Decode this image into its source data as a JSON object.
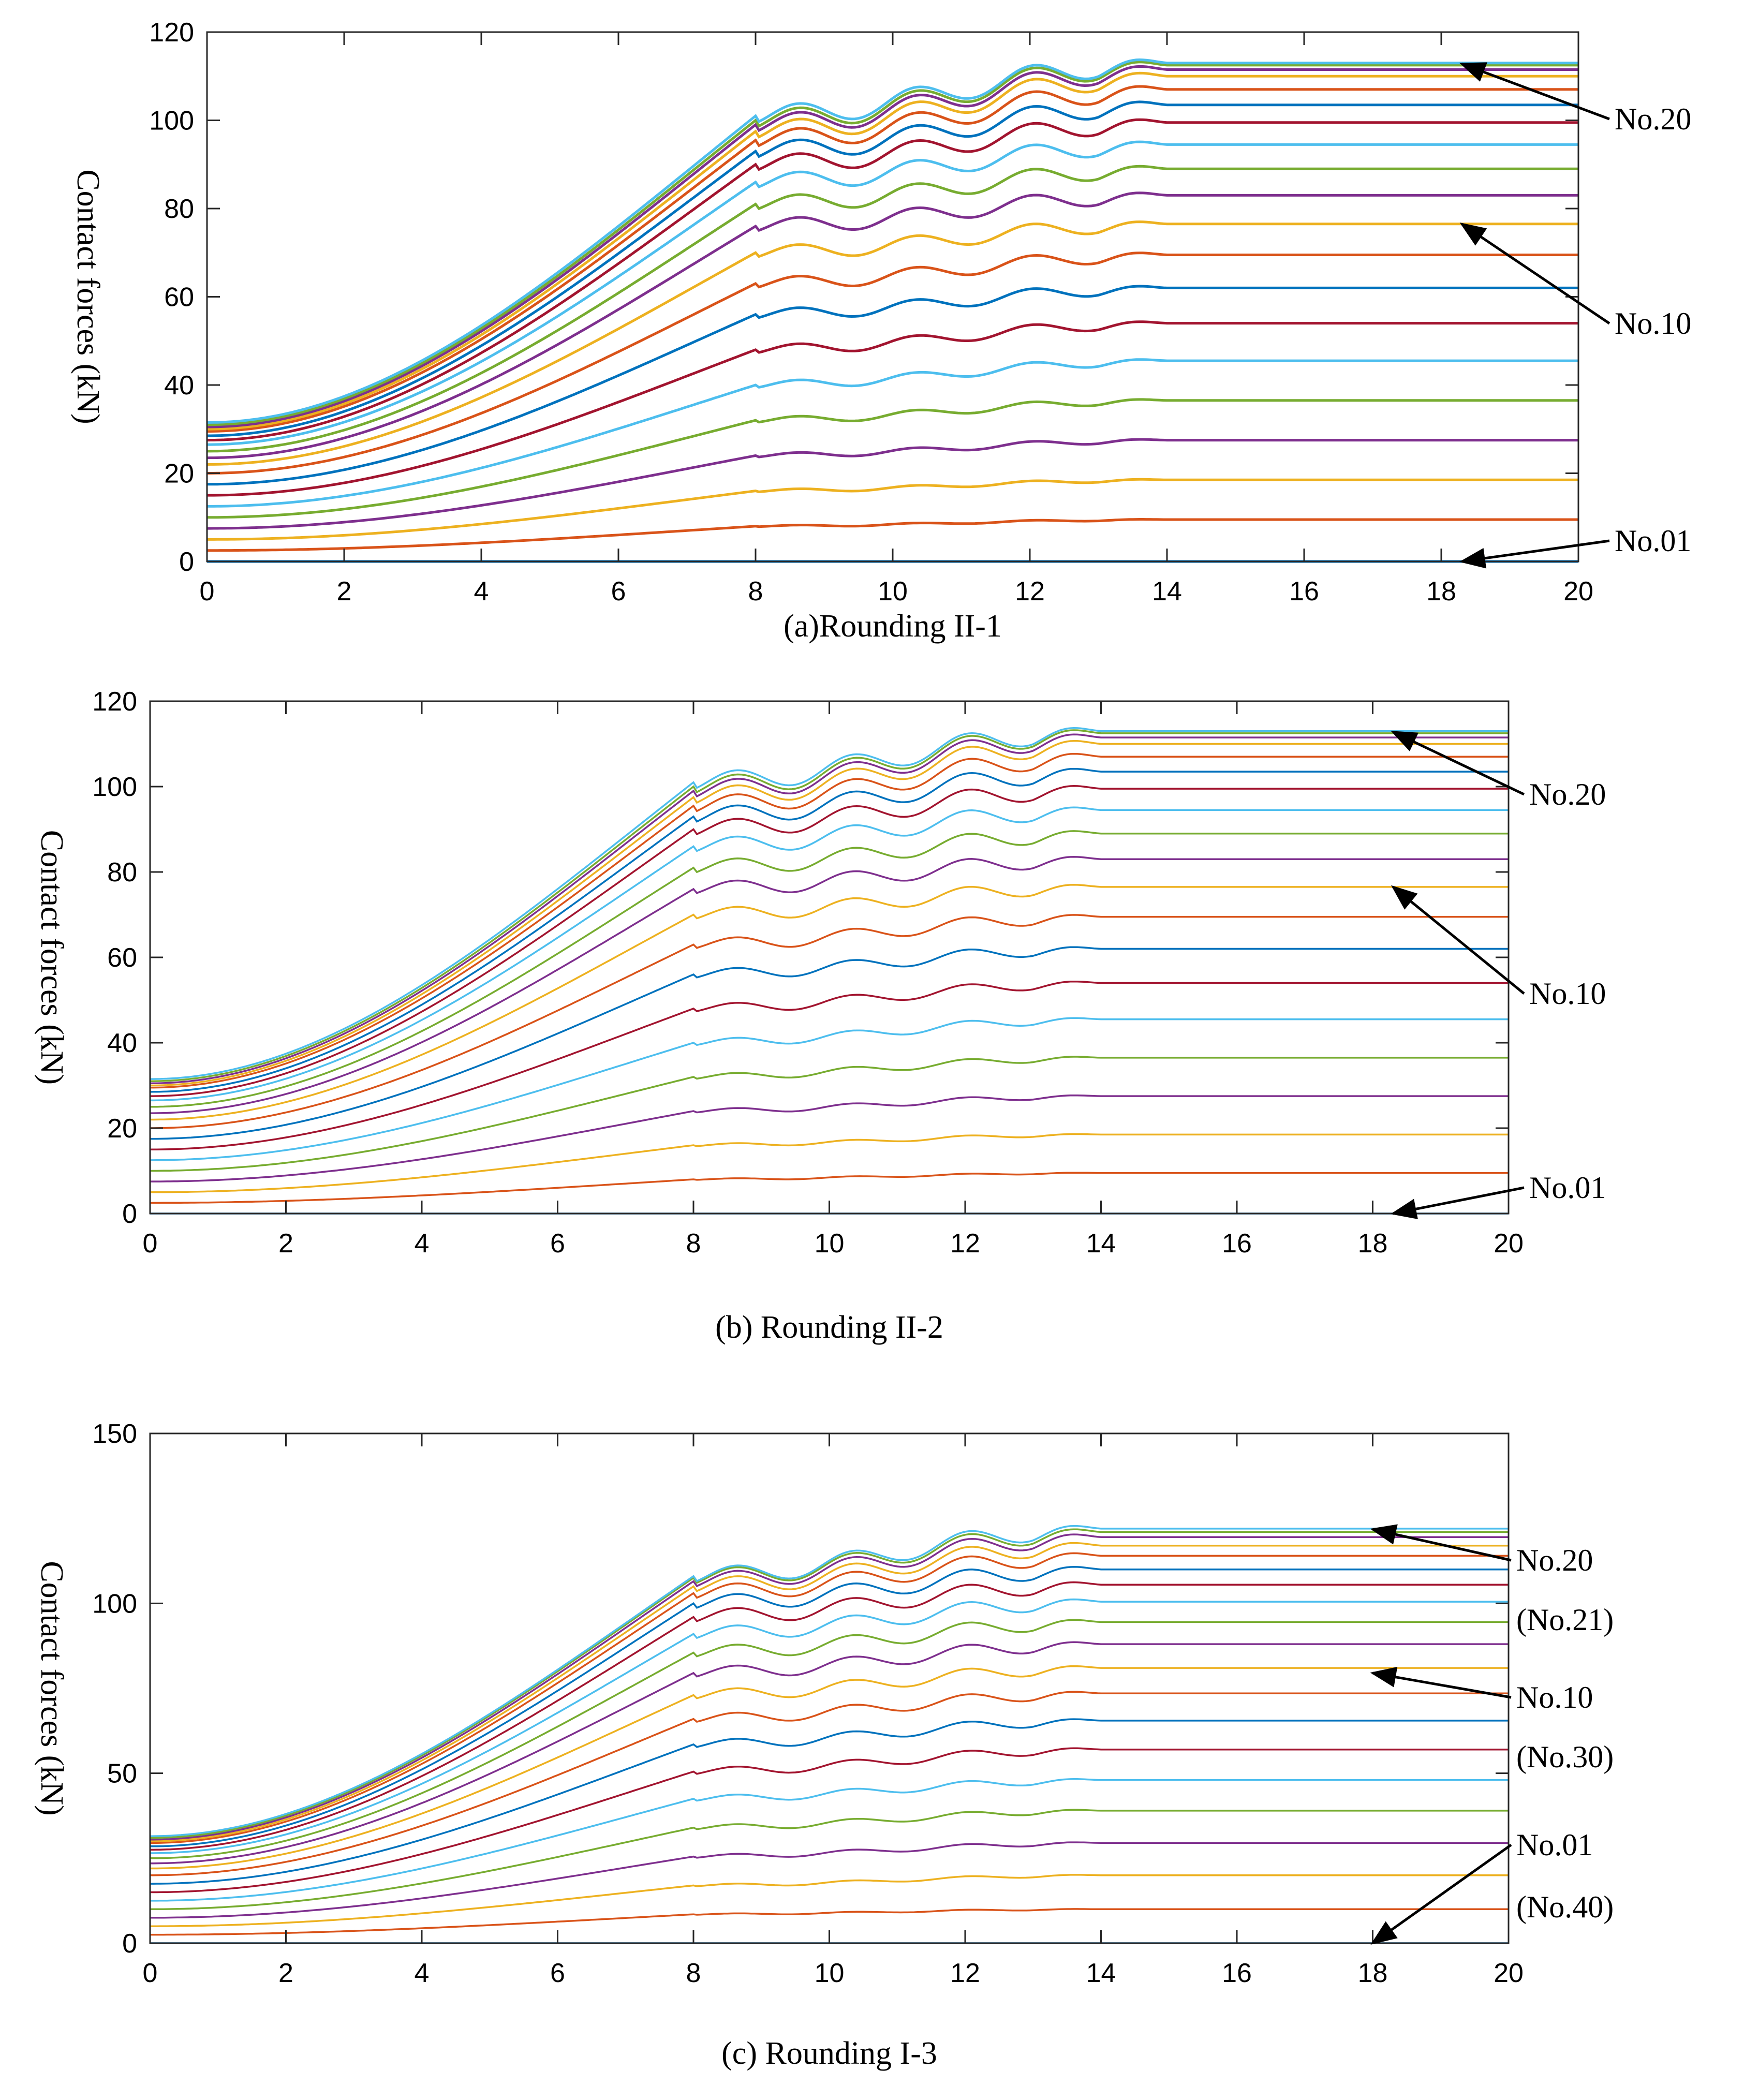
{
  "chart_data": [
    {
      "id": "a",
      "type": "line",
      "caption": "(a)Rounding II-1",
      "ylabel": "Contact forces (kN)",
      "xlim": [
        0,
        20
      ],
      "ylim": [
        0,
        120
      ],
      "xticks": [
        "0",
        "2",
        "4",
        "6",
        "8",
        "10",
        "12",
        "14",
        "16",
        "18",
        "20"
      ],
      "yticks": [
        "0",
        "20",
        "40",
        "60",
        "80",
        "100",
        "120"
      ],
      "series_count": 20,
      "series_final_values": [
        0,
        9.5,
        18.5,
        27.5,
        36.5,
        45.5,
        54,
        62,
        69.5,
        76.5,
        83,
        89,
        94.5,
        99.5,
        103.5,
        107,
        110,
        111.5,
        112.5,
        113
      ],
      "series_start_values": [
        0,
        2.5,
        5,
        7.5,
        10,
        12.5,
        15,
        17.5,
        20,
        22,
        23.5,
        25,
        26.5,
        27.5,
        28.5,
        29.5,
        30,
        30.5,
        31,
        31.5
      ],
      "series_plateau_values": [
        0,
        8,
        16,
        24,
        32,
        40,
        48,
        56,
        63,
        70,
        76,
        81,
        86,
        90,
        93,
        95.5,
        97.5,
        99,
        100,
        101
      ],
      "annotations": [
        {
          "label": "No.20",
          "target": [
            18.3,
            112.8
          ]
        },
        {
          "label": "No.10",
          "target": [
            18.3,
            76.5
          ]
        },
        {
          "label": "No.01",
          "target": [
            18.3,
            0
          ]
        }
      ]
    },
    {
      "id": "b",
      "type": "line",
      "caption": "(b) Rounding II-2",
      "ylabel": "Contact forces (kN)",
      "xlim": [
        0,
        20
      ],
      "ylim": [
        0,
        120
      ],
      "xticks": [
        "0",
        "2",
        "4",
        "6",
        "8",
        "10",
        "12",
        "14",
        "16",
        "18",
        "20"
      ],
      "yticks": [
        "0",
        "20",
        "40",
        "60",
        "80",
        "100",
        "120"
      ],
      "series_count": 20,
      "series_final_values": [
        0,
        9.5,
        18.5,
        27.5,
        36.5,
        45.5,
        54,
        62,
        69.5,
        76.5,
        83,
        89,
        94.5,
        99.5,
        103.5,
        107,
        110,
        111.5,
        112.5,
        113
      ],
      "series_start_values": [
        0,
        2.5,
        5,
        7.5,
        10,
        12.5,
        15,
        17.5,
        20,
        22,
        23.5,
        25,
        26.5,
        27.5,
        28.5,
        29.5,
        30,
        30.5,
        31,
        31.5
      ],
      "series_plateau_values": [
        0,
        8,
        16,
        24,
        32,
        40,
        48,
        56,
        63,
        70,
        76,
        81,
        86,
        90,
        93,
        95.5,
        97.5,
        99,
        100,
        101
      ],
      "annotations": [
        {
          "label": "No.20",
          "target": [
            18.3,
            112.8
          ]
        },
        {
          "label": "No.10",
          "target": [
            18.3,
            76.5
          ]
        },
        {
          "label": "No.01",
          "target": [
            18.3,
            0
          ]
        }
      ]
    },
    {
      "id": "c",
      "type": "line",
      "caption": "(c) Rounding I-3",
      "ylabel": "Contact forces (kN)",
      "xlim": [
        0,
        20
      ],
      "ylim": [
        0,
        150
      ],
      "xticks": [
        "0",
        "2",
        "4",
        "6",
        "8",
        "10",
        "12",
        "14",
        "16",
        "18",
        "20"
      ],
      "yticks": [
        "0",
        "50",
        "100",
        "150"
      ],
      "series_count": 20,
      "series_final_values": [
        0,
        10,
        20,
        29.5,
        39,
        48,
        57,
        65.5,
        73.5,
        81,
        88,
        94.5,
        100.5,
        105.5,
        110,
        114,
        117,
        119.5,
        121,
        122
      ],
      "series_start_values": [
        0,
        2.5,
        5,
        7.5,
        10,
        12.5,
        15,
        17.5,
        20,
        22,
        23.5,
        25,
        26.5,
        27.5,
        28.5,
        29.5,
        30,
        30.5,
        31,
        31.5
      ],
      "series_plateau_values": [
        0,
        8.5,
        17,
        25.5,
        34,
        42.5,
        50.5,
        58.5,
        66,
        73,
        79.5,
        85.5,
        91,
        96,
        100,
        103,
        105,
        106.5,
        107.5,
        108
      ],
      "annotations": [
        {
          "label": "No.20",
          "target": [
            18.0,
            121.8
          ]
        },
        {
          "label": "(No.21)",
          "target": null
        },
        {
          "label": "No.10",
          "target": [
            18.0,
            79.5
          ]
        },
        {
          "label": "(No.30)",
          "target": null
        },
        {
          "label": "No.01",
          "target": [
            18.0,
            0
          ]
        },
        {
          "label": "(No.40)",
          "target": null
        }
      ]
    }
  ],
  "colors": [
    "#0072BD",
    "#D95319",
    "#EDB120",
    "#7E2F8E",
    "#77AC30",
    "#4DBEEE",
    "#A2142F"
  ]
}
